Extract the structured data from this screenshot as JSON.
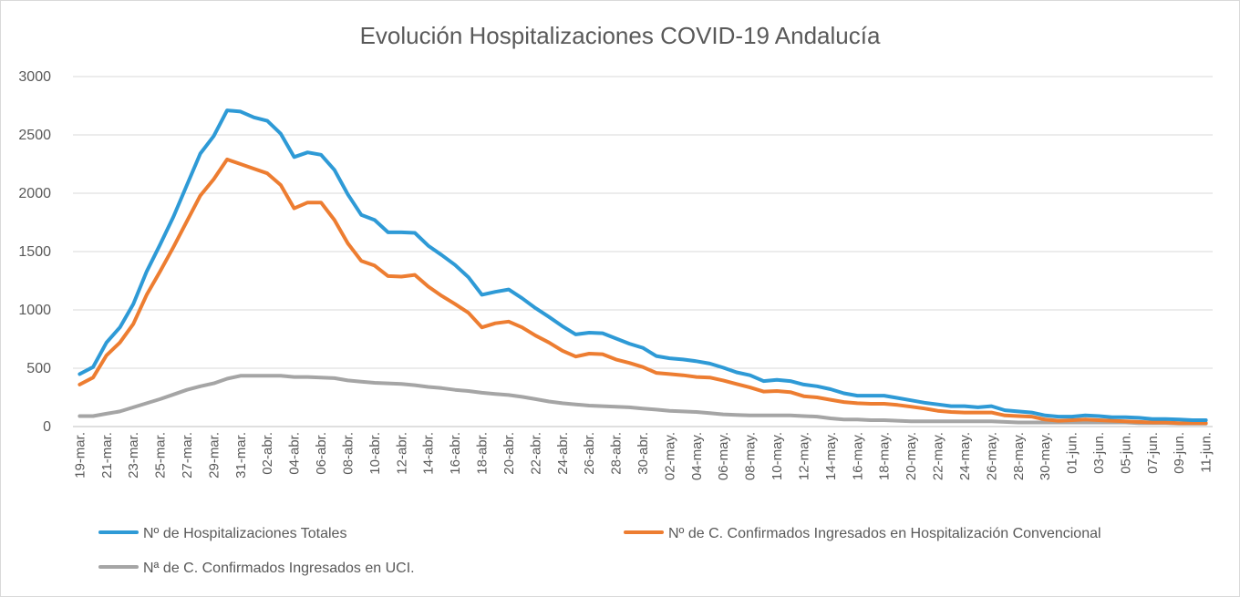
{
  "chart_data": {
    "type": "line",
    "title": "Evolución Hospitalizaciones COVID-19 Andalucía",
    "xlabel": "",
    "ylabel": "",
    "ylim": [
      0,
      3000
    ],
    "y_ticks": [
      "0",
      "500",
      "1000",
      "1500",
      "2000",
      "2500",
      "3000"
    ],
    "grid": true,
    "legend_position": "bottom",
    "x": [
      "19-mar.",
      "20-mar.",
      "21-mar.",
      "22-mar.",
      "23-mar.",
      "24-mar.",
      "25-mar.",
      "26-mar.",
      "27-mar.",
      "28-mar.",
      "29-mar.",
      "30-mar.",
      "31-mar.",
      "01-abr.",
      "02-abr.",
      "03-abr.",
      "04-abr.",
      "05-abr.",
      "06-abr.",
      "07-abr.",
      "08-abr.",
      "09-abr.",
      "10-abr.",
      "11-abr.",
      "12-abr.",
      "13-abr.",
      "14-abr.",
      "15-abr.",
      "16-abr.",
      "17-abr.",
      "18-abr.",
      "19-abr.",
      "20-abr.",
      "21-abr.",
      "22-abr.",
      "23-abr.",
      "24-abr.",
      "25-abr.",
      "26-abr.",
      "27-abr.",
      "28-abr.",
      "29-abr.",
      "30-abr.",
      "01-may.",
      "02-may.",
      "03-may.",
      "04-may.",
      "05-may.",
      "06-may.",
      "07-may.",
      "08-may.",
      "09-may.",
      "10-may.",
      "11-may.",
      "12-may.",
      "13-may.",
      "14-may.",
      "15-may.",
      "16-may.",
      "17-may.",
      "18-may.",
      "19-may.",
      "20-may.",
      "21-may.",
      "22-may.",
      "23-may.",
      "24-may.",
      "25-may.",
      "26-may.",
      "27-may.",
      "28-may.",
      "29-may.",
      "30-may.",
      "31-may.",
      "01-jun.",
      "02-jun.",
      "03-jun.",
      "04-jun.",
      "05-jun.",
      "06-jun.",
      "07-jun.",
      "08-jun.",
      "09-jun.",
      "10-jun.",
      "11-jun."
    ],
    "x_tick_labels": [
      "19-mar.",
      "21-mar.",
      "23-mar.",
      "25-mar.",
      "27-mar.",
      "29-mar.",
      "31-mar.",
      "02-abr.",
      "04-abr.",
      "06-abr.",
      "08-abr.",
      "10-abr.",
      "12-abr.",
      "14-abr.",
      "16-abr.",
      "18-abr.",
      "20-abr.",
      "22-abr.",
      "24-abr.",
      "26-abr.",
      "28-abr.",
      "30-abr.",
      "02-may.",
      "04-may.",
      "06-may.",
      "08-may.",
      "10-may.",
      "12-may.",
      "14-may.",
      "16-may.",
      "18-may.",
      "20-may.",
      "22-may.",
      "24-may.",
      "26-may.",
      "28-may.",
      "30-may.",
      "01-jun.",
      "03-jun.",
      "05-jun.",
      "07-jun.",
      "09-jun.",
      "11-jun."
    ],
    "series": [
      {
        "name": "Nº de Hospitalizaciones Totales",
        "color": "#2e9ad6",
        "values": [
          450,
          510,
          720,
          850,
          1050,
          1330,
          1560,
          1800,
          2070,
          2340,
          2490,
          2710,
          2700,
          2650,
          2620,
          2510,
          2310,
          2350,
          2330,
          2200,
          1990,
          1815,
          1770,
          1665,
          1665,
          1660,
          1550,
          1470,
          1385,
          1280,
          1130,
          1155,
          1175,
          1100,
          1015,
          940,
          860,
          790,
          805,
          800,
          755,
          710,
          675,
          605,
          585,
          575,
          560,
          540,
          505,
          465,
          440,
          390,
          400,
          390,
          360,
          345,
          320,
          285,
          265,
          265,
          265,
          245,
          225,
          205,
          190,
          175,
          175,
          165,
          175,
          140,
          130,
          120,
          95,
          85,
          85,
          95,
          90,
          80,
          80,
          75,
          65,
          65,
          60,
          55,
          55
        ]
      },
      {
        "name": "Nº de C. Confirmados Ingresados en Hospitalización Convencional",
        "color": "#ed7d31",
        "values": [
          360,
          420,
          610,
          720,
          880,
          1130,
          1330,
          1540,
          1760,
          1980,
          2120,
          2290,
          2250,
          2210,
          2170,
          2070,
          1870,
          1920,
          1920,
          1770,
          1570,
          1420,
          1380,
          1290,
          1285,
          1300,
          1200,
          1120,
          1050,
          975,
          850,
          885,
          900,
          850,
          780,
          720,
          650,
          600,
          625,
          620,
          575,
          545,
          510,
          460,
          450,
          440,
          425,
          420,
          395,
          365,
          335,
          300,
          305,
          295,
          260,
          250,
          230,
          210,
          200,
          195,
          195,
          185,
          170,
          155,
          135,
          125,
          120,
          120,
          120,
          95,
          90,
          85,
          60,
          50,
          55,
          60,
          55,
          50,
          45,
          40,
          35,
          35,
          30,
          30,
          30
        ]
      },
      {
        "name": "Nª de C. Confirmados Ingresados en UCI.",
        "color": "#a5a5a5",
        "values": [
          90,
          90,
          110,
          130,
          165,
          200,
          235,
          275,
          315,
          345,
          370,
          410,
          435,
          435,
          435,
          435,
          425,
          425,
          420,
          415,
          395,
          385,
          375,
          370,
          365,
          355,
          340,
          330,
          315,
          305,
          290,
          280,
          270,
          255,
          235,
          215,
          200,
          190,
          180,
          175,
          170,
          165,
          155,
          145,
          135,
          130,
          125,
          115,
          105,
          100,
          95,
          95,
          95,
          95,
          90,
          85,
          70,
          60,
          60,
          55,
          55,
          50,
          45,
          45,
          45,
          45,
          45,
          45,
          45,
          40,
          35,
          35,
          35,
          35,
          35,
          35,
          35,
          35,
          35,
          30,
          30,
          30,
          25,
          25,
          25
        ]
      }
    ]
  }
}
